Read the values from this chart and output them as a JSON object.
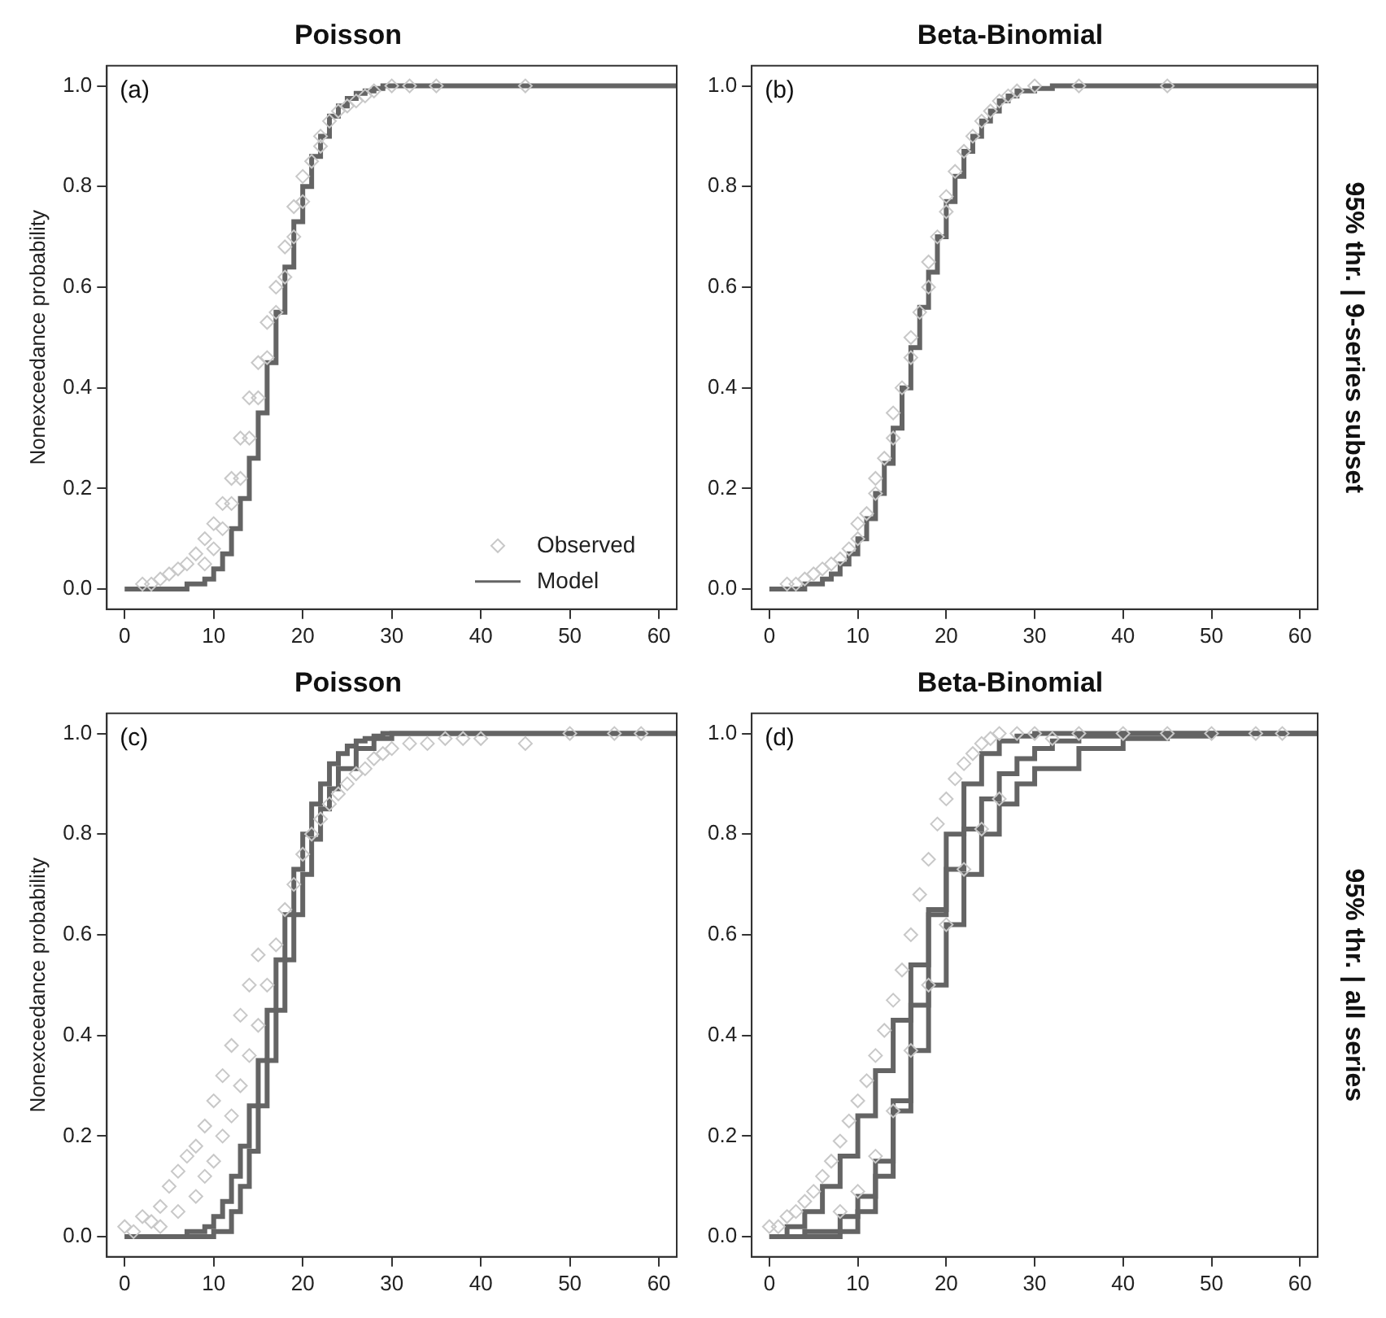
{
  "chart_data": [
    {
      "type": "scatter",
      "title": "Poisson",
      "ylabel": "Nonexceedance probability",
      "annotations": [
        "(a)"
      ],
      "xlim": [
        -2,
        62
      ],
      "xticks": [
        0,
        10,
        20,
        30,
        40,
        50,
        60
      ],
      "ylim": [
        -0.04,
        1.04
      ],
      "yticks": [
        {
          "value": 0,
          "label": "0.0"
        },
        {
          "value": 0.2,
          "label": "0.2"
        },
        {
          "value": 0.4,
          "label": "0.4"
        },
        {
          "value": 0.6,
          "label": "0.6"
        },
        {
          "value": 0.8,
          "label": "0.8"
        },
        {
          "value": 1,
          "label": "1.0"
        }
      ],
      "grid": false,
      "legend": "bottom right",
      "series": [
        {
          "name": "Observed",
          "type": "scatter",
          "marker": "diamond",
          "color": "#c8c8c8",
          "x": [
            2,
            3,
            4,
            5,
            6,
            7,
            8,
            9,
            9,
            10,
            10,
            11,
            11,
            12,
            12,
            13,
            13,
            14,
            14,
            15,
            15,
            16,
            16,
            17,
            17,
            18,
            18,
            19,
            19,
            20,
            20,
            21,
            22,
            22,
            23,
            24,
            25,
            26,
            27,
            28,
            30,
            32,
            35,
            45
          ],
          "values": [
            0.01,
            0.01,
            0.02,
            0.03,
            0.04,
            0.05,
            0.07,
            0.05,
            0.1,
            0.08,
            0.13,
            0.12,
            0.17,
            0.17,
            0.22,
            0.22,
            0.3,
            0.3,
            0.38,
            0.38,
            0.45,
            0.46,
            0.53,
            0.55,
            0.6,
            0.62,
            0.68,
            0.7,
            0.76,
            0.77,
            0.82,
            0.85,
            0.88,
            0.9,
            0.93,
            0.95,
            0.96,
            0.97,
            0.98,
            0.99,
            1.0,
            1.0,
            1.0,
            1.0
          ]
        },
        {
          "name": "Model",
          "type": "step",
          "color": "#646464",
          "x": [
            0,
            1,
            2,
            3,
            4,
            5,
            6,
            7,
            8,
            9,
            10,
            11,
            12,
            13,
            14,
            15,
            16,
            17,
            18,
            19,
            20,
            21,
            22,
            23,
            24,
            25,
            26,
            27,
            28,
            29,
            30,
            62
          ],
          "values": [
            0,
            0,
            0,
            0,
            0,
            0,
            0,
            0.01,
            0.01,
            0.02,
            0.04,
            0.07,
            0.12,
            0.18,
            0.26,
            0.35,
            0.45,
            0.55,
            0.64,
            0.73,
            0.8,
            0.86,
            0.9,
            0.94,
            0.96,
            0.975,
            0.985,
            0.99,
            0.995,
            1,
            1,
            1
          ]
        }
      ]
    },
    {
      "type": "scatter",
      "title": "Beta-Binomial",
      "annotations": [
        "(b)",
        "95% thr. | 9-series subset"
      ],
      "xlim": [
        -2,
        62
      ],
      "xticks": [
        0,
        10,
        20,
        30,
        40,
        50,
        60
      ],
      "ylim": [
        -0.04,
        1.04
      ],
      "yticks": [
        {
          "value": 0,
          "label": "0.0"
        },
        {
          "value": 0.2,
          "label": "0.2"
        },
        {
          "value": 0.4,
          "label": "0.4"
        },
        {
          "value": 0.6,
          "label": "0.6"
        },
        {
          "value": 0.8,
          "label": "0.8"
        },
        {
          "value": 1,
          "label": "1.0"
        }
      ],
      "grid": false,
      "series": [
        {
          "type": "scatter",
          "marker": "diamond",
          "color": "#c8c8c8",
          "x": [
            2,
            3,
            4,
            5,
            6,
            7,
            8,
            9,
            10,
            10,
            11,
            12,
            12,
            13,
            14,
            14,
            15,
            16,
            16,
            17,
            18,
            18,
            19,
            20,
            20,
            21,
            22,
            23,
            24,
            25,
            26,
            27,
            28,
            30,
            35,
            45
          ],
          "values": [
            0.01,
            0.01,
            0.02,
            0.03,
            0.04,
            0.05,
            0.06,
            0.08,
            0.1,
            0.13,
            0.15,
            0.19,
            0.22,
            0.26,
            0.3,
            0.35,
            0.4,
            0.46,
            0.5,
            0.55,
            0.6,
            0.65,
            0.7,
            0.75,
            0.78,
            0.83,
            0.87,
            0.9,
            0.93,
            0.95,
            0.97,
            0.98,
            0.99,
            1.0,
            1.0,
            1.0
          ]
        },
        {
          "type": "step",
          "color": "#646464",
          "x": [
            0,
            2,
            4,
            6,
            7,
            8,
            9,
            10,
            11,
            12,
            13,
            14,
            15,
            16,
            17,
            18,
            19,
            20,
            21,
            22,
            23,
            24,
            25,
            26,
            27,
            28,
            30,
            32,
            62
          ],
          "values": [
            0,
            0,
            0.01,
            0.02,
            0.03,
            0.05,
            0.07,
            0.1,
            0.14,
            0.19,
            0.25,
            0.32,
            0.4,
            0.48,
            0.56,
            0.63,
            0.7,
            0.77,
            0.82,
            0.87,
            0.9,
            0.93,
            0.95,
            0.97,
            0.98,
            0.99,
            0.995,
            1,
            1
          ]
        }
      ]
    },
    {
      "type": "scatter",
      "title": "Poisson",
      "ylabel": "Nonexceedance probability",
      "annotations": [
        "(c)"
      ],
      "xlim": [
        -2,
        62
      ],
      "xticks": [
        0,
        10,
        20,
        30,
        40,
        50,
        60
      ],
      "ylim": [
        -0.04,
        1.04
      ],
      "yticks": [
        {
          "value": 0,
          "label": "0.0"
        },
        {
          "value": 0.2,
          "label": "0.2"
        },
        {
          "value": 0.4,
          "label": "0.4"
        },
        {
          "value": 0.6,
          "label": "0.6"
        },
        {
          "value": 0.8,
          "label": "0.8"
        },
        {
          "value": 1,
          "label": "1.0"
        }
      ],
      "grid": false,
      "series": [
        {
          "type": "scatter",
          "marker": "diamond",
          "color": "#c8c8c8",
          "x": [
            0,
            1,
            2,
            3,
            4,
            4,
            5,
            6,
            6,
            7,
            8,
            8,
            9,
            9,
            10,
            10,
            11,
            11,
            12,
            12,
            13,
            13,
            14,
            14,
            15,
            15,
            16,
            17,
            18,
            19,
            20,
            21,
            22,
            23,
            24,
            25,
            26,
            27,
            28,
            29,
            30,
            32,
            34,
            36,
            38,
            40,
            45,
            50,
            55,
            58
          ],
          "values": [
            0.02,
            0.01,
            0.04,
            0.03,
            0.06,
            0.02,
            0.1,
            0.05,
            0.13,
            0.16,
            0.18,
            0.08,
            0.22,
            0.12,
            0.27,
            0.15,
            0.32,
            0.2,
            0.38,
            0.24,
            0.44,
            0.3,
            0.5,
            0.36,
            0.56,
            0.42,
            0.5,
            0.58,
            0.65,
            0.7,
            0.76,
            0.8,
            0.83,
            0.86,
            0.88,
            0.9,
            0.92,
            0.93,
            0.95,
            0.96,
            0.97,
            0.98,
            0.98,
            0.99,
            0.99,
            0.99,
            0.98,
            1.0,
            1.0,
            1.0
          ]
        },
        {
          "type": "step",
          "color": "#646464",
          "x": [
            0,
            5,
            7,
            8,
            9,
            10,
            11,
            12,
            13,
            14,
            15,
            16,
            17,
            18,
            19,
            20,
            21,
            22,
            23,
            24,
            25,
            26,
            27,
            28,
            29,
            30,
            62
          ],
          "values": [
            0,
            0,
            0.01,
            0.01,
            0.02,
            0.04,
            0.07,
            0.12,
            0.18,
            0.26,
            0.35,
            0.45,
            0.55,
            0.64,
            0.73,
            0.8,
            0.86,
            0.9,
            0.94,
            0.96,
            0.975,
            0.985,
            0.99,
            0.995,
            1,
            1,
            1
          ]
        },
        {
          "type": "step",
          "color": "#646464",
          "x": [
            0,
            8,
            10,
            12,
            13,
            14,
            15,
            16,
            17,
            18,
            19,
            20,
            21,
            22,
            23,
            24,
            26,
            28,
            30,
            62
          ],
          "values": [
            0,
            0,
            0.01,
            0.05,
            0.1,
            0.17,
            0.26,
            0.35,
            0.45,
            0.55,
            0.64,
            0.72,
            0.79,
            0.85,
            0.89,
            0.93,
            0.97,
            0.99,
            1,
            1
          ]
        }
      ]
    },
    {
      "type": "scatter",
      "title": "Beta-Binomial",
      "annotations": [
        "(d)",
        "95% thr. | all series"
      ],
      "xlim": [
        -2,
        62
      ],
      "xticks": [
        0,
        10,
        20,
        30,
        40,
        50,
        60
      ],
      "ylim": [
        -0.04,
        1.04
      ],
      "yticks": [
        {
          "value": 0,
          "label": "0.0"
        },
        {
          "value": 0.2,
          "label": "0.2"
        },
        {
          "value": 0.4,
          "label": "0.4"
        },
        {
          "value": 0.6,
          "label": "0.6"
        },
        {
          "value": 0.8,
          "label": "0.8"
        },
        {
          "value": 1,
          "label": "1.0"
        }
      ],
      "grid": false,
      "series": [
        {
          "type": "scatter",
          "marker": "diamond",
          "color": "#c8c8c8",
          "x": [
            0,
            1,
            2,
            3,
            4,
            5,
            6,
            7,
            8,
            9,
            10,
            11,
            12,
            13,
            14,
            15,
            16,
            17,
            18,
            19,
            20,
            21,
            22,
            23,
            24,
            25,
            26,
            28,
            30,
            32,
            35,
            40,
            45,
            50,
            55,
            58,
            8,
            10,
            12,
            14,
            16,
            18,
            20,
            22,
            24,
            26
          ],
          "values": [
            0.02,
            0.02,
            0.04,
            0.05,
            0.07,
            0.09,
            0.12,
            0.15,
            0.19,
            0.23,
            0.27,
            0.31,
            0.36,
            0.41,
            0.47,
            0.53,
            0.6,
            0.68,
            0.75,
            0.82,
            0.87,
            0.91,
            0.94,
            0.96,
            0.98,
            0.99,
            1.0,
            1.0,
            1.0,
            0.99,
            1.0,
            1.0,
            1.0,
            1.0,
            1.0,
            1.0,
            0.05,
            0.09,
            0.16,
            0.25,
            0.37,
            0.5,
            0.62,
            0.73,
            0.81,
            0.87
          ]
        },
        {
          "type": "step",
          "color": "#646464",
          "x": [
            0,
            2,
            4,
            6,
            8,
            10,
            12,
            14,
            16,
            18,
            20,
            22,
            24,
            26,
            28,
            30,
            32,
            35,
            40,
            62
          ],
          "values": [
            0,
            0.02,
            0.05,
            0.1,
            0.16,
            0.24,
            0.33,
            0.43,
            0.54,
            0.64,
            0.73,
            0.81,
            0.87,
            0.92,
            0.95,
            0.97,
            0.985,
            0.995,
            1,
            1
          ]
        },
        {
          "type": "step",
          "color": "#646464",
          "x": [
            0,
            6,
            8,
            10,
            12,
            14,
            16,
            18,
            20,
            22,
            24,
            26,
            28,
            30,
            62
          ],
          "values": [
            0,
            0,
            0.01,
            0.05,
            0.12,
            0.27,
            0.46,
            0.65,
            0.8,
            0.9,
            0.96,
            0.985,
            0.995,
            1,
            1
          ]
        },
        {
          "type": "step",
          "color": "#646464",
          "x": [
            0,
            4,
            8,
            10,
            12,
            14,
            16,
            18,
            20,
            22,
            24,
            26,
            28,
            30,
            35,
            40,
            45,
            50,
            62
          ],
          "values": [
            0,
            0.01,
            0.04,
            0.08,
            0.15,
            0.25,
            0.37,
            0.5,
            0.62,
            0.72,
            0.8,
            0.86,
            0.9,
            0.93,
            0.97,
            0.99,
            0.995,
            1,
            1
          ]
        }
      ]
    }
  ]
}
